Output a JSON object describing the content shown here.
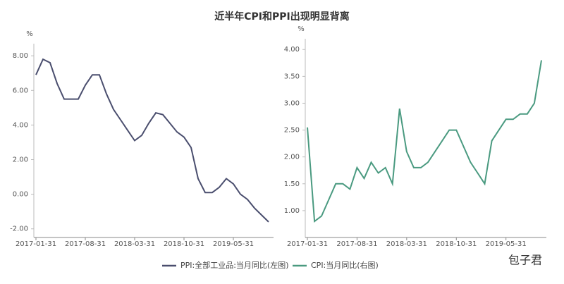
{
  "title": "近半年CPI和PPI出现明显背离",
  "watermark": "包子君",
  "chart_data": [
    {
      "type": "line",
      "y_label": "%",
      "categories": [
        "2017-01-31",
        null,
        null,
        null,
        null,
        null,
        null,
        "2017-08-31",
        null,
        null,
        null,
        null,
        null,
        null,
        "2018-03-31",
        null,
        null,
        null,
        null,
        null,
        null,
        "2018-10-31",
        null,
        null,
        null,
        null,
        null,
        null,
        "2019-05-31",
        null,
        null,
        null,
        null,
        null
      ],
      "series": [
        {
          "name": "PPI:全部工业品:当月同比(左图)",
          "color": "#4a4e6e",
          "values": [
            6.9,
            7.8,
            7.6,
            6.4,
            5.5,
            5.5,
            5.5,
            6.3,
            6.9,
            6.9,
            5.8,
            4.9,
            4.3,
            3.7,
            3.1,
            3.4,
            4.1,
            4.7,
            4.6,
            4.1,
            3.6,
            3.3,
            2.7,
            0.9,
            0.1,
            0.1,
            0.4,
            0.9,
            0.6,
            0.0,
            -0.3,
            -0.8,
            -1.2,
            -1.6
          ]
        }
      ],
      "ylim": [
        -2.5,
        8.7
      ],
      "yticks": [
        {
          "value": -2,
          "label": "-2.00"
        },
        {
          "value": 0,
          "label": "0.00"
        },
        {
          "value": 2,
          "label": "2.00"
        },
        {
          "value": 4,
          "label": "4.00"
        },
        {
          "value": 6,
          "label": "6.00"
        },
        {
          "value": 8,
          "label": "8.00"
        }
      ]
    },
    {
      "type": "line",
      "y_label": "%",
      "categories": [
        "2017-01-31",
        null,
        null,
        null,
        null,
        null,
        null,
        "2017-08-31",
        null,
        null,
        null,
        null,
        null,
        null,
        "2018-03-31",
        null,
        null,
        null,
        null,
        null,
        null,
        "2018-10-31",
        null,
        null,
        null,
        null,
        null,
        null,
        "2019-05-31",
        null,
        null,
        null,
        null,
        null
      ],
      "series": [
        {
          "name": "CPI:当月同比(右图)",
          "color": "#4a9a80",
          "values": [
            2.55,
            0.8,
            0.9,
            1.2,
            1.5,
            1.5,
            1.4,
            1.8,
            1.6,
            1.9,
            1.7,
            1.8,
            1.5,
            2.9,
            2.1,
            1.8,
            1.8,
            1.9,
            2.1,
            2.3,
            2.5,
            2.5,
            2.2,
            1.9,
            1.7,
            1.5,
            2.3,
            2.5,
            2.7,
            2.7,
            2.8,
            2.8,
            3.0,
            3.8
          ]
        }
      ],
      "ylim": [
        0.5,
        4.2
      ],
      "yticks": [
        {
          "value": 1,
          "label": "1.00"
        },
        {
          "value": 1.5,
          "label": "1.50"
        },
        {
          "value": 2,
          "label": "2.00"
        },
        {
          "value": 2.5,
          "label": "2.50"
        },
        {
          "value": 3,
          "label": "3.00"
        },
        {
          "value": 3.5,
          "label": "3.50"
        },
        {
          "value": 4,
          "label": "4.00"
        }
      ]
    }
  ]
}
